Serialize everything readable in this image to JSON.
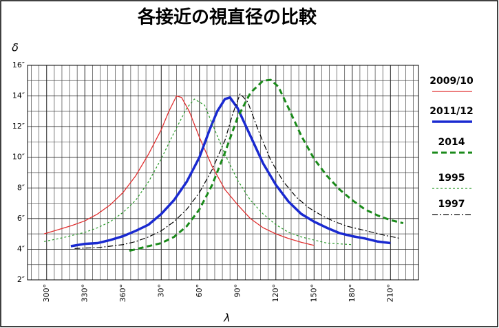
{
  "chart_data": {
    "type": "line",
    "title": "各接近の視直径の比較",
    "ylabel": "δ",
    "xlabel": "λ",
    "xlim": [
      285,
      592
    ],
    "ylim": [
      2,
      16
    ],
    "xticks": [
      {
        "value": 300,
        "label": "300°"
      },
      {
        "value": 330,
        "label": "330°"
      },
      {
        "value": 360,
        "label": "360°"
      },
      {
        "value": 390,
        "label": "30°"
      },
      {
        "value": 420,
        "label": "60°"
      },
      {
        "value": 450,
        "label": "90°"
      },
      {
        "value": 480,
        "label": "120°"
      },
      {
        "value": 510,
        "label": "150°"
      },
      {
        "value": 540,
        "label": "180°"
      },
      {
        "value": 570,
        "label": "210°"
      }
    ],
    "xminor": [
      288,
      294,
      300,
      306,
      312,
      318,
      324,
      330,
      336,
      342,
      348,
      354,
      360,
      366,
      372,
      378,
      384,
      390,
      396,
      402,
      408,
      414,
      420,
      426,
      432,
      438,
      444,
      450,
      456,
      462,
      468,
      474,
      480,
      486,
      492,
      498,
      504,
      510,
      516,
      522,
      528,
      534,
      540,
      546,
      552,
      558,
      564,
      570,
      576,
      582,
      588
    ],
    "yticks": [
      {
        "value": 2,
        "label": "2″"
      },
      {
        "value": 4,
        "label": "4″"
      },
      {
        "value": 6,
        "label": "6″"
      },
      {
        "value": 8,
        "label": "8″"
      },
      {
        "value": 10,
        "label": "10″"
      },
      {
        "value": 12,
        "label": "12″"
      },
      {
        "value": 14,
        "label": "14″"
      },
      {
        "value": 16,
        "label": "16″"
      }
    ],
    "yminor": [
      3,
      5,
      7,
      9,
      11,
      13,
      15
    ],
    "grid": true,
    "series": [
      {
        "name": "2009/10",
        "color": "#e03030",
        "width": 1.3,
        "dash": "none",
        "x": [
          298,
          310,
          320,
          330,
          340,
          350,
          360,
          370,
          380,
          390,
          396,
          402,
          406,
          412,
          420,
          430,
          440,
          450,
          460,
          470,
          480,
          490,
          500,
          510
        ],
        "values": [
          5.0,
          5.3,
          5.55,
          5.85,
          6.3,
          6.9,
          7.7,
          8.8,
          10.2,
          11.8,
          13.0,
          14.0,
          13.9,
          13.0,
          11.3,
          9.4,
          7.9,
          6.9,
          6.0,
          5.4,
          5.0,
          4.7,
          4.45,
          4.25
        ]
      },
      {
        "name": "2011/12",
        "color": "#1a2ad0",
        "width": 3.5,
        "dash": "none",
        "x": [
          319,
          330,
          340,
          350,
          360,
          370,
          380,
          390,
          400,
          410,
          420,
          428,
          434,
          440,
          444,
          450,
          460,
          470,
          480,
          490,
          500,
          510,
          520,
          530,
          540,
          550,
          560,
          570
        ],
        "values": [
          4.2,
          4.35,
          4.4,
          4.6,
          4.85,
          5.2,
          5.6,
          6.3,
          7.2,
          8.4,
          10.0,
          11.8,
          13.0,
          13.8,
          13.9,
          13.2,
          11.4,
          9.6,
          8.2,
          7.1,
          6.3,
          5.8,
          5.4,
          5.05,
          4.85,
          4.7,
          4.5,
          4.4
        ]
      },
      {
        "name": "2014",
        "color": "#1a8a1a",
        "width": 3,
        "dash": "8,5",
        "x": [
          365,
          380,
          390,
          400,
          410,
          420,
          430,
          440,
          450,
          460,
          470,
          476,
          482,
          490,
          500,
          510,
          520,
          530,
          540,
          550,
          560,
          570,
          580
        ],
        "values": [
          3.9,
          4.2,
          4.4,
          4.8,
          5.5,
          6.6,
          8.2,
          10.3,
          12.6,
          14.2,
          15.0,
          15.05,
          14.6,
          13.2,
          11.4,
          9.9,
          8.8,
          7.9,
          7.2,
          6.6,
          6.2,
          5.9,
          5.7
        ]
      },
      {
        "name": "1995",
        "color": "#2a9a2a",
        "width": 1.2,
        "dash": "3,3",
        "x": [
          298,
          310,
          320,
          330,
          340,
          350,
          360,
          370,
          380,
          390,
          400,
          410,
          416,
          424,
          430,
          440,
          450,
          460,
          470,
          480,
          490,
          500,
          510,
          520,
          540
        ],
        "values": [
          4.5,
          4.7,
          4.9,
          5.1,
          5.4,
          5.8,
          6.4,
          7.2,
          8.4,
          9.9,
          11.6,
          13.2,
          13.8,
          13.4,
          12.2,
          10.2,
          8.5,
          7.2,
          6.3,
          5.6,
          5.1,
          4.8,
          4.6,
          4.4,
          4.3
        ]
      },
      {
        "name": "1997",
        "color": "#000000",
        "width": 1.2,
        "dash": "8,3,2,3",
        "x": [
          322,
          340,
          350,
          360,
          370,
          380,
          390,
          400,
          410,
          420,
          430,
          440,
          446,
          452,
          458,
          466,
          476,
          486,
          496,
          506,
          516,
          526,
          536,
          546,
          556,
          566,
          578
        ],
        "values": [
          4.05,
          4.1,
          4.2,
          4.3,
          4.5,
          4.8,
          5.2,
          5.8,
          6.6,
          7.7,
          9.2,
          11.1,
          12.8,
          14.15,
          13.6,
          11.8,
          9.8,
          8.4,
          7.4,
          6.7,
          6.2,
          5.8,
          5.5,
          5.3,
          5.1,
          4.9,
          4.7
        ]
      }
    ]
  }
}
